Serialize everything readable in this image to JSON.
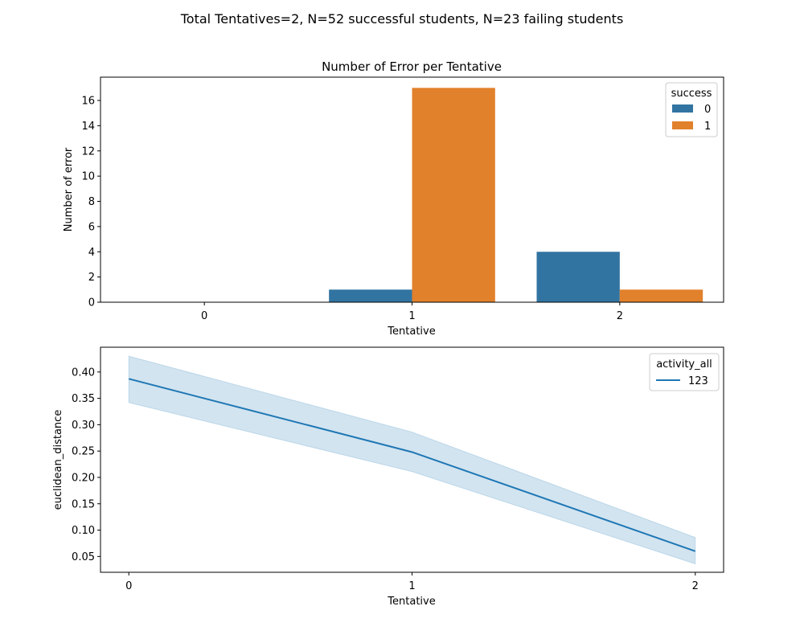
{
  "figure": {
    "suptitle": "Total Tentatives=2, N=52 successful students, N=23 failing students"
  },
  "chart_data": [
    {
      "type": "bar",
      "title": "Number of Error per Tentative",
      "xlabel": "Tentative",
      "ylabel": "Number of error",
      "categories": [
        "0",
        "1",
        "2"
      ],
      "series": [
        {
          "name": "0",
          "values": [
            0,
            1,
            4
          ],
          "color": "#3274a1"
        },
        {
          "name": "1",
          "values": [
            0,
            17,
            1
          ],
          "color": "#e1812c"
        }
      ],
      "ylim": [
        0,
        17.85
      ],
      "yticks": [
        0,
        2,
        4,
        6,
        8,
        10,
        12,
        14,
        16
      ],
      "ytick_labels": [
        "0",
        "2",
        "4",
        "6",
        "8",
        "10",
        "12",
        "14",
        "16"
      ],
      "legend": {
        "title": "success",
        "placement": "top-right"
      },
      "grid": false
    },
    {
      "type": "line",
      "xlabel": "Tentative",
      "ylabel": "euclidean_distance",
      "x": [
        0,
        1,
        2
      ],
      "xtick_labels": [
        "0",
        "1",
        "2"
      ],
      "xlim": [
        -0.1,
        2.1
      ],
      "series": [
        {
          "name": "123",
          "values": [
            0.387,
            0.248,
            0.06
          ],
          "ci_lower": [
            0.342,
            0.211,
            0.036
          ],
          "ci_upper": [
            0.43,
            0.286,
            0.086
          ],
          "color": "#1f77b4"
        }
      ],
      "ylim": [
        0.02,
        0.447
      ],
      "yticks": [
        0.05,
        0.1,
        0.15,
        0.2,
        0.25,
        0.3,
        0.35,
        0.4
      ],
      "ytick_labels": [
        "0.05",
        "0.10",
        "0.15",
        "0.20",
        "0.25",
        "0.30",
        "0.35",
        "0.40"
      ],
      "legend": {
        "title": "activity_all",
        "placement": "top-right"
      },
      "grid": false
    }
  ]
}
